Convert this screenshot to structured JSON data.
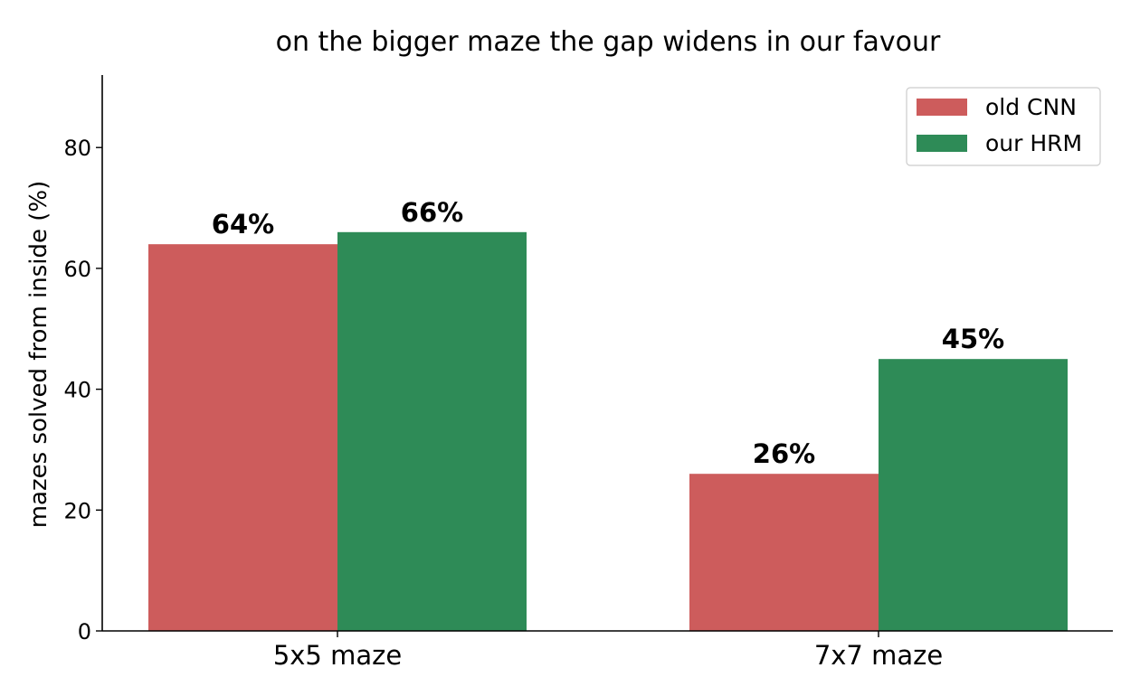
{
  "chart_data": {
    "type": "bar",
    "title": "on the bigger maze the gap widens in our favour",
    "xlabel": "",
    "ylabel": "mazes solved from inside (%)",
    "categories": [
      "5x5 maze",
      "7x7 maze"
    ],
    "series": [
      {
        "name": "old CNN",
        "values": [
          64,
          26
        ],
        "labels": [
          "64%",
          "26%"
        ],
        "color": "#cd5c5c"
      },
      {
        "name": "our HRM",
        "values": [
          66,
          45
        ],
        "labels": [
          "66%",
          "45%"
        ],
        "color": "#2e8b57"
      }
    ],
    "ylim": [
      0,
      92
    ],
    "yticks": [
      0,
      20,
      40,
      60,
      80
    ],
    "grid": false,
    "legend_position": "top-right"
  }
}
